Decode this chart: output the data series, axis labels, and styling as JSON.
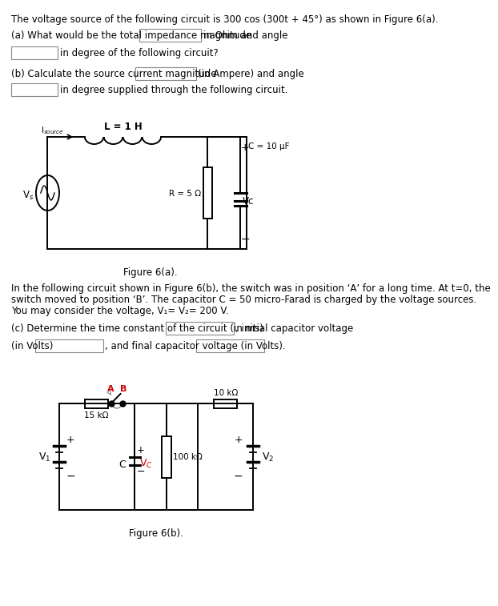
{
  "bg_color": "#ffffff",
  "text_color": "#000000",
  "red_color": "#cc0000",
  "gray_color": "#888888",
  "title_text": "The voltage source of the following circuit is 300 cos (300t + 45°) as shown in Figure 6(a).",
  "qa_text": "(a) What would be the total impedance magnitude",
  "qa_text2": "in Ohm and angle",
  "qa_text3": "in degree of the following circuit?",
  "qb_text": "(b) Calculate the source current magnitude",
  "qb_text2": "(in Ampere) and angle",
  "qb_text3": "in degree supplied through the following circuit.",
  "fig6a_label": "Figure 6(a).",
  "fig6b_label": "Figure 6(b).",
  "para_text_line1": "In the following circuit shown in Figure 6(b), the switch was in position ‘A’ for a long time. At t=0, the",
  "para_text_line2": "switch moved to position ‘B’. The capacitor C = 50 micro-Farad is charged by the voltage sources.",
  "para_text_line3": "You may consider the voltage, V₁= V₂= 200 V.",
  "qc_text": "(c) Determine the time constant of the circuit (in ms)",
  "qc_text2": ", initial capacitor voltage",
  "qc_text3": "(in Volts)",
  "qc_text4": ", and final capacitor voltage (in Volts).",
  "font_size": 8.5
}
